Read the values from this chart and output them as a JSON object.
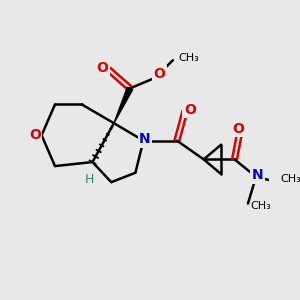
{
  "background_color": "#e8e8e8",
  "bond_color": "#000000",
  "bond_width": 1.8,
  "atom_O_color": "#dd0000",
  "atom_N_color": "#0000cc",
  "atom_H_color": "#2e8b57",
  "font_size": 9,
  "fig_size": [
    3.0,
    3.0
  ],
  "dpi": 100,
  "xlim": [
    0,
    10
  ],
  "ylim": [
    0,
    10
  ]
}
